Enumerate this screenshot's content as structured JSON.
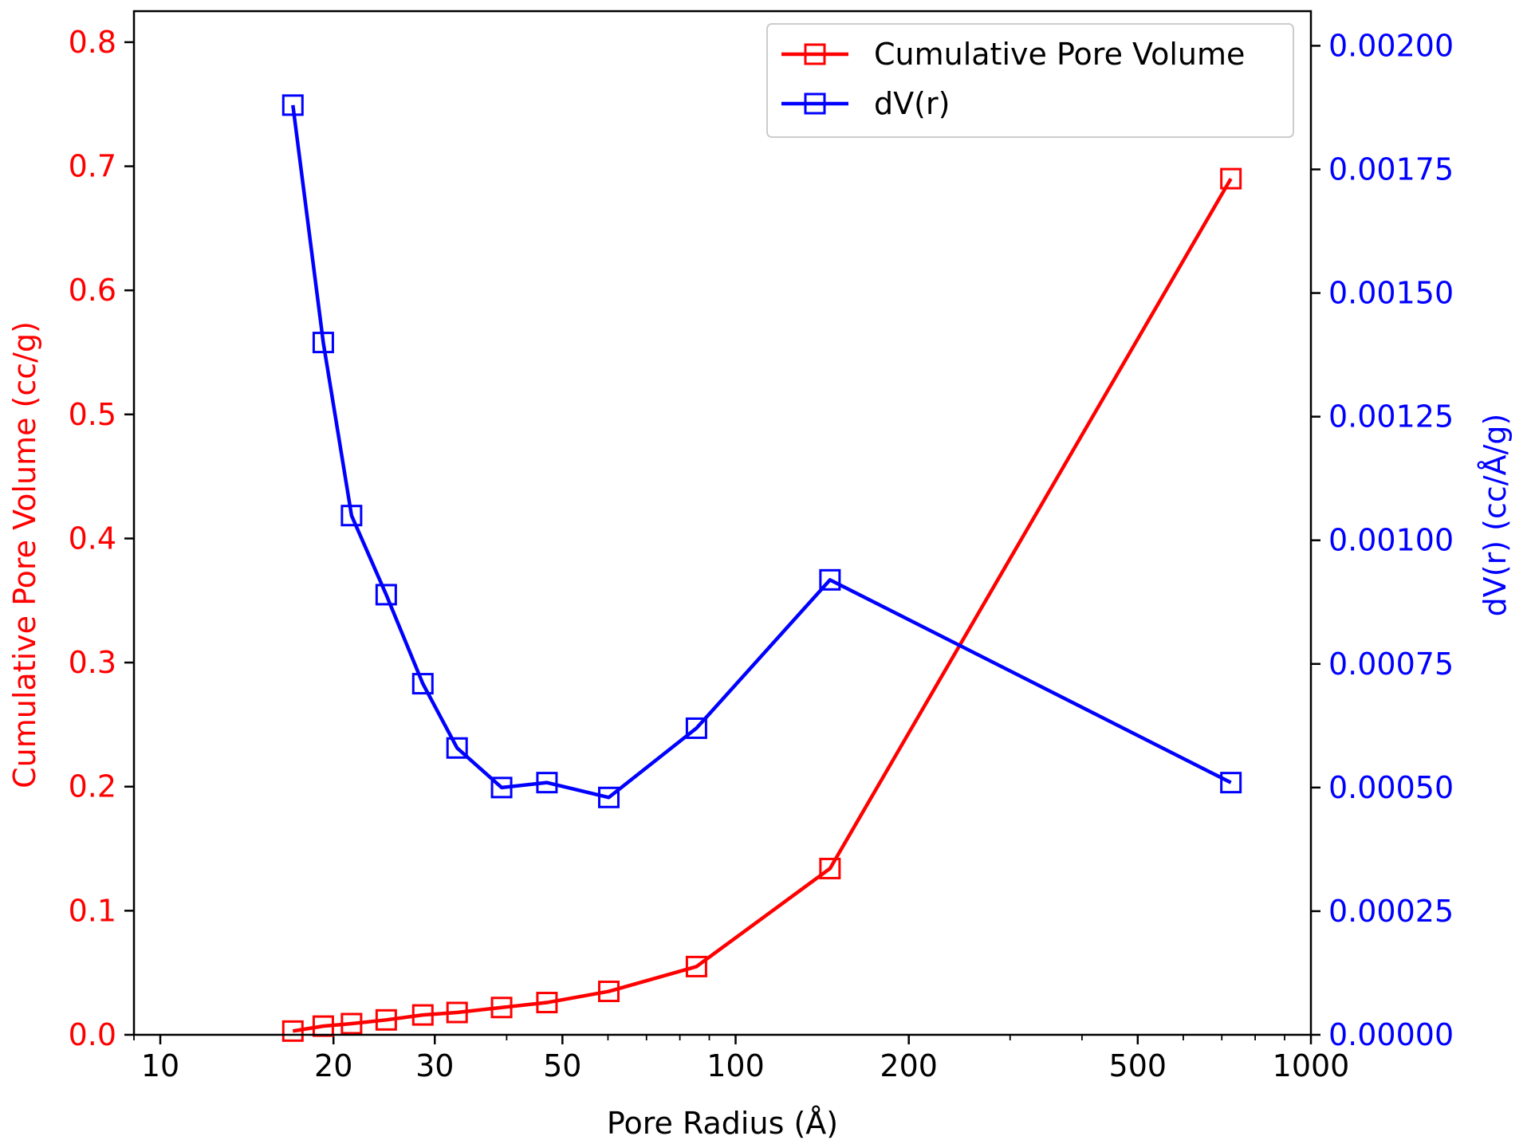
{
  "chart_data": {
    "type": "line",
    "x_scale": "log",
    "xlabel": "Pore Radius (Å)",
    "xlim": [
      9,
      1000
    ],
    "x_ticks": [
      {
        "value": 10,
        "label": "10"
      },
      {
        "value": 20,
        "label": "20"
      },
      {
        "value": 30,
        "label": "30"
      },
      {
        "value": 50,
        "label": "50"
      },
      {
        "value": 100,
        "label": "100"
      },
      {
        "value": 200,
        "label": "200"
      },
      {
        "value": 500,
        "label": "500"
      },
      {
        "value": 1000,
        "label": "1000"
      }
    ],
    "ylabel_left": "Cumulative Pore Volume (cc/g)",
    "ylim_left": [
      0,
      0.825
    ],
    "y_ticks_left": [
      "0.0",
      "0.1",
      "0.2",
      "0.3",
      "0.4",
      "0.5",
      "0.6",
      "0.7",
      "0.8"
    ],
    "ylabel_right": "dV(r) (cc/Å/g)",
    "ylim_right": [
      0,
      0.00207
    ],
    "y_ticks_right": [
      "0.00000",
      "0.00025",
      "0.00050",
      "0.00075",
      "0.00100",
      "0.00125",
      "0.00150",
      "0.00175",
      "0.00200"
    ],
    "legend": "top-right",
    "series": [
      {
        "name": "Cumulative Pore Volume",
        "axis": "left",
        "color": "#ff0000",
        "marker": "square",
        "x": [
          17.0,
          19.2,
          21.5,
          24.7,
          28.6,
          32.8,
          39.2,
          47.0,
          60.2,
          85.5,
          145.9,
          726.0
        ],
        "y": [
          0.003,
          0.007,
          0.009,
          0.012,
          0.016,
          0.018,
          0.022,
          0.026,
          0.035,
          0.055,
          0.134,
          0.69
        ]
      },
      {
        "name": "dV(r)",
        "axis": "right",
        "color": "#0000ff",
        "marker": "square",
        "x": [
          17.0,
          19.2,
          21.5,
          24.7,
          28.6,
          32.8,
          39.2,
          47.0,
          60.2,
          85.5,
          145.9,
          726.0
        ],
        "y": [
          0.00188,
          0.0014,
          0.00105,
          0.00089,
          0.00071,
          0.00058,
          0.0005,
          0.00051,
          0.00048,
          0.00062,
          0.00092,
          0.00051
        ]
      }
    ]
  },
  "colors": {
    "left_axis": "#ff0000",
    "right_axis": "#0000ff",
    "frame": "#000000"
  }
}
